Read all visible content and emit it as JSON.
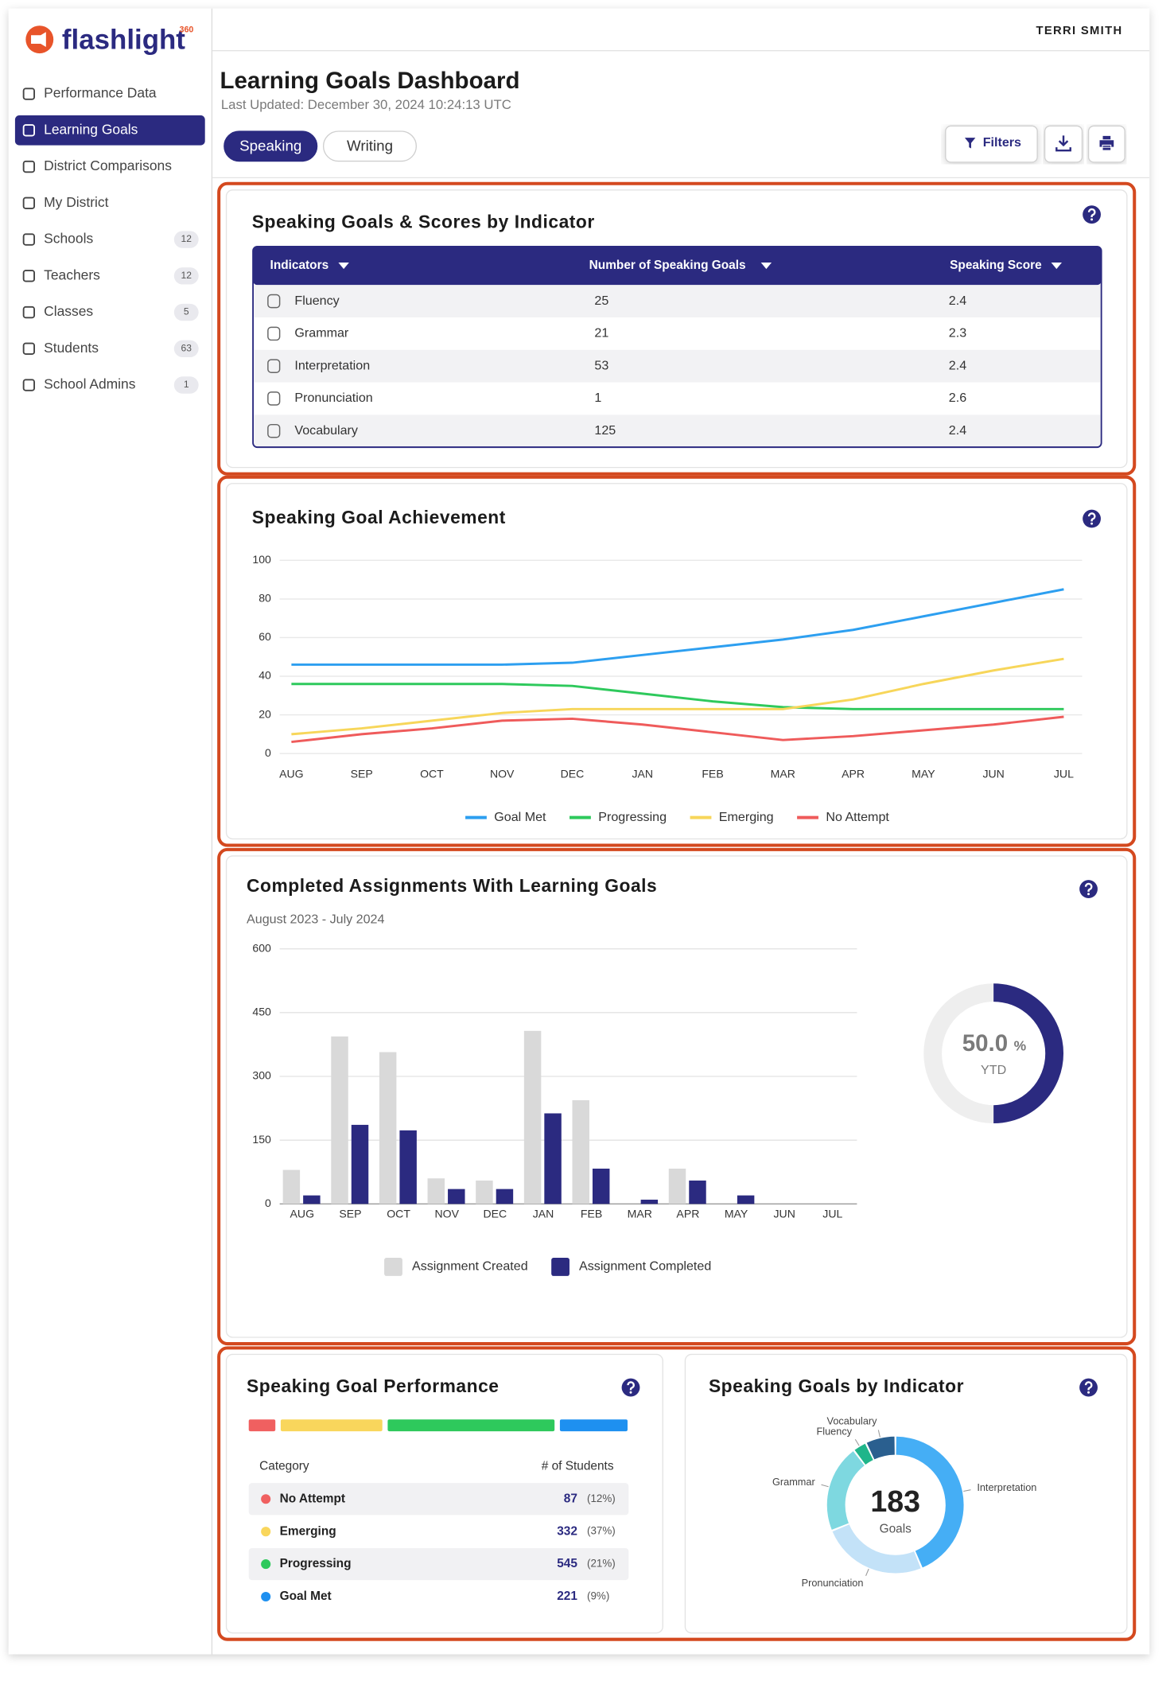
{
  "sidebar": {
    "brand": "flashlight",
    "brand_mark": "360",
    "nav": [
      {
        "label": "Performance Data"
      },
      {
        "label": "Learning Goals",
        "active": true
      },
      {
        "label": "District Comparisons"
      },
      {
        "label": "My District"
      },
      {
        "label": "Schools",
        "count": 12
      },
      {
        "label": "Teachers",
        "count": 12
      },
      {
        "label": "Classes",
        "count": 5
      },
      {
        "label": "Students",
        "count": 63
      },
      {
        "label": "School Admins",
        "count": 1
      }
    ]
  },
  "header": {
    "user": "TERRI SMITH",
    "title": "Learning Goals Dashboard",
    "updated": "Last Updated: December 30, 2024 10:24:13 UTC",
    "tabs": [
      {
        "label": "Speaking",
        "active": true
      },
      {
        "label": "Writing"
      }
    ],
    "filters": "Filters"
  },
  "indicator_table": {
    "title": "Speaking Goals & Scores by Indicator",
    "columns": [
      "Indicators",
      "Number of Speaking Goals",
      "Speaking Score"
    ],
    "rows": [
      [
        "Fluency",
        25,
        2.4
      ],
      [
        "Grammar",
        21,
        2.3
      ],
      [
        "Interpretation",
        53,
        2.4
      ],
      [
        "Pronunciation",
        1,
        2.6
      ],
      [
        "Vocabulary",
        125,
        2.4
      ]
    ]
  },
  "chart_data": [
    {
      "type": "line",
      "title": "Speaking Goal Achievement",
      "categories": [
        "AUG",
        "SEP",
        "OCT",
        "NOV",
        "DEC",
        "JAN",
        "FEB",
        "MAR",
        "APR",
        "MAY",
        "JUN",
        "JUL"
      ],
      "series": [
        {
          "name": "Goal Met",
          "color": "#2d9ff0",
          "values": [
            46,
            46,
            46,
            46,
            47,
            51,
            55,
            59,
            64,
            71,
            78,
            85
          ]
        },
        {
          "name": "Progressing",
          "color": "#2ec95c",
          "values": [
            36,
            36,
            36,
            36,
            35,
            31,
            27,
            24,
            23,
            23,
            23,
            23
          ]
        },
        {
          "name": "Emerging",
          "color": "#f7d65a",
          "values": [
            10,
            13,
            17,
            21,
            23,
            23,
            23,
            23,
            28,
            36,
            43,
            49
          ]
        },
        {
          "name": "No Attempt",
          "color": "#ef5b5b",
          "values": [
            6,
            10,
            13,
            17,
            18,
            15,
            11,
            7,
            9,
            12,
            15,
            19
          ]
        }
      ],
      "ylim": [
        0,
        100
      ],
      "yticks": [
        0,
        20,
        40,
        60,
        80,
        100
      ],
      "grid": true,
      "legend": "bottom"
    },
    {
      "type": "bar",
      "title": "Completed Assignments With Learning Goals",
      "subtitle": "August 2023 - July 2024",
      "categories": [
        "AUG",
        "SEP",
        "OCT",
        "NOV",
        "DEC",
        "JAN",
        "FEB",
        "MAR",
        "APR",
        "MAY",
        "JUN",
        "JUL"
      ],
      "series": [
        {
          "name": "Assignment Created",
          "color": "#d9d9d9",
          "values": [
            80,
            394,
            357,
            60,
            55,
            407,
            244,
            0,
            83,
            0,
            0,
            0
          ]
        },
        {
          "name": "Assignment Completed",
          "color": "#2b2a80",
          "values": [
            20,
            186,
            173,
            35,
            35,
            213,
            83,
            10,
            55,
            20,
            0,
            0
          ]
        }
      ],
      "ylim": [
        0,
        600
      ],
      "yticks": [
        0,
        150,
        300,
        450,
        600
      ],
      "grid": true,
      "legend": "bottom"
    },
    {
      "type": "gauge",
      "values": [
        50
      ],
      "value_labels": [
        "50.0"
      ],
      "unit": "%",
      "caption": "YTD",
      "ylim": [
        0,
        100
      ],
      "color": "#2b2a80",
      "track_color": "#eeeeee"
    },
    {
      "type": "stacked_bar",
      "title": "Speaking Goal Performance",
      "columns": [
        "Category",
        "# of Students"
      ],
      "categories": [
        "No Attempt",
        "Emerging",
        "Progressing",
        "Goal Met"
      ],
      "colors": [
        "#f06060",
        "#f9d65c",
        "#2ec95c",
        "#1e90f0"
      ],
      "values": [
        87,
        332,
        545,
        221
      ],
      "shares": [
        "(12%)",
        "(37%)",
        "(21%)",
        "(9%)"
      ]
    },
    {
      "type": "donut",
      "title": "Speaking Goals by Indicator",
      "categories": [
        "Interpretation",
        "Pronunciation",
        "Grammar",
        "Fluency",
        "Vocabulary"
      ],
      "colors": [
        "#45aef5",
        "#c3e2f8",
        "#7ed8e0",
        "#1fb58a",
        "#2a5f8f"
      ],
      "values": [
        80,
        46,
        38,
        6,
        13
      ],
      "total": 183,
      "total_label": "Goals"
    }
  ]
}
